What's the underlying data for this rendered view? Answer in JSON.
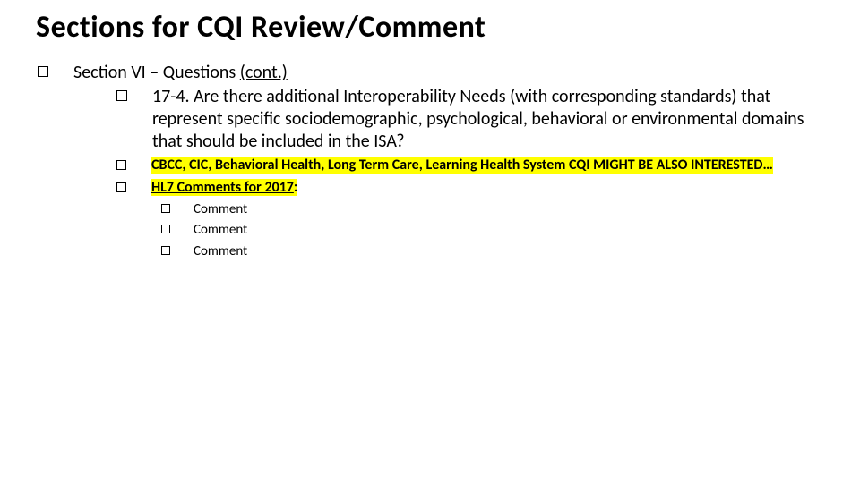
{
  "colors": {
    "background": "#ffffff",
    "text": "#000000",
    "highlight": "#ffff00",
    "checkbox_border": "#000000"
  },
  "typography": {
    "family": "Calibri",
    "title_size_pt": 26,
    "body_size_pt": 15,
    "sub_size_pt": 12,
    "comment_size_pt": 11,
    "title_weight": 700,
    "body_weight": 400,
    "sub_weight": 600
  },
  "title": "Sections for CQI Review/Comment",
  "section_heading_prefix": "Section VI – Questions ",
  "section_heading_cont": "(cont.)",
  "question_text": "17-4. Are there additional Interoperability Needs (with corresponding standards) that represent specific sociodemographic, psychological, behavioral or environmental domains that should be included in the ISA?",
  "note_highlighted": "CBCC, CIC, Behavioral Health, Long Term Care, Learning Health System  CQI MIGHT BE ALSO INTERESTED…",
  "hl7_label": "HL7 Comments for 2017",
  "hl7_colon": ":",
  "comments": [
    "Comment",
    "Comment",
    "Comment"
  ]
}
